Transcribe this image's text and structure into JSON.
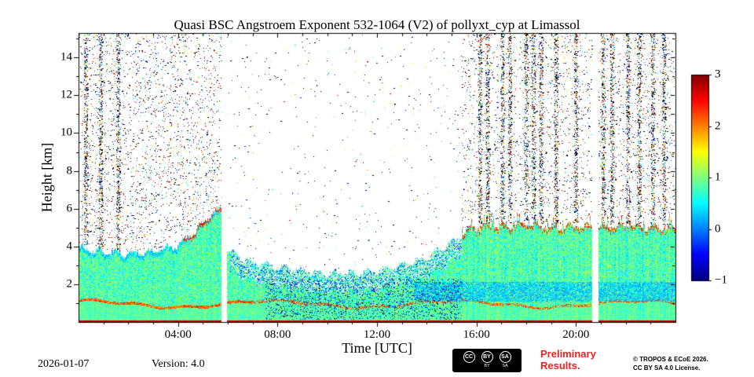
{
  "figure": {
    "title": "Quasi BSC Angstroem Exponent 532-1064 (V2) of pollyxt_cyp at Limassol",
    "xlabel": "Time [UTC]",
    "ylabel": "Height [km]"
  },
  "footer": {
    "date": "2026-01-07",
    "version": "Version: 4.0",
    "preliminary_line1": "Preliminary",
    "preliminary_line2": "Results.",
    "preliminary_color": "#ee2222",
    "copyright_line1": "© TROPOS & ECoE 2026.",
    "copyright_line2": "CC BY SA 4.0 License.",
    "cc_badge": {
      "icons": [
        "CC",
        "BY",
        "SA"
      ],
      "subs": [
        "",
        "BY",
        "SA"
      ]
    }
  },
  "chart_data": {
    "type": "heatmap",
    "title": "Quasi BSC Angstroem Exponent 532-1064 (V2) of pollyxt_cyp at Limassol",
    "xlabel": "Time [UTC]",
    "ylabel": "Height [km]",
    "xlim_hours": [
      0,
      24
    ],
    "ylim": [
      0,
      15.3
    ],
    "x_major_tick_hours": [
      4,
      8,
      12,
      16,
      20
    ],
    "x_major_ticks": [
      "04:00",
      "08:00",
      "12:00",
      "16:00",
      "20:00"
    ],
    "x_minor_step_hours": 1,
    "y_ticks": [
      2,
      4,
      6,
      8,
      10,
      12,
      14
    ],
    "y_minor_step_km": 1,
    "colorbar": {
      "min": -1,
      "max": 3,
      "ticks": [
        3,
        2,
        1,
        0,
        -1
      ],
      "tick_labels": [
        "3",
        "2",
        "1",
        "0",
        "−1"
      ],
      "colormap": "jet"
    },
    "aerosol_layer": {
      "hours": [
        0,
        1,
        2,
        3,
        4,
        4.7,
        5.3,
        5.75,
        6.0,
        7,
        8,
        9,
        10,
        11,
        12,
        13,
        14,
        15,
        15.7,
        16.5,
        17,
        18,
        19,
        20,
        21,
        22,
        23,
        24
      ],
      "top_km": [
        3.9,
        3.7,
        3.6,
        3.7,
        4.1,
        4.8,
        5.7,
        6.0,
        3.7,
        3.2,
        2.9,
        2.7,
        2.6,
        2.6,
        2.7,
        3.0,
        3.4,
        4.2,
        4.9,
        5.1,
        5.0,
        5.2,
        5.0,
        5.1,
        5.0,
        5.1,
        5.0,
        5.0
      ],
      "typical_value": 0.8,
      "value_spread": 0.55,
      "bright_line_km": 0.95,
      "bright_line_value": 2.0,
      "surface_value": 2.5
    },
    "cyan_band": {
      "start_hour": 13.5,
      "km_range": [
        1.1,
        2.1
      ],
      "value": 0.25
    },
    "data_gaps_hours": [
      [
        5.75,
        5.98
      ],
      [
        20.65,
        20.9
      ]
    ],
    "noise_regions": [
      {
        "start": 0,
        "end": 5.75,
        "density": 0.055
      },
      {
        "start": 5.98,
        "end": 15.4,
        "density": 0.006
      },
      {
        "start": 15.4,
        "end": 24,
        "density": 0.045
      }
    ],
    "noise_streak_hours": [
      0.3,
      0.9,
      1.6,
      16.15,
      16.45,
      17.05,
      17.35,
      18.0,
      18.3,
      18.6,
      19.2,
      20.0,
      21.1,
      21.45,
      22.1,
      22.55,
      23.1,
      23.55
    ],
    "noise_streak_width_hours": 0.15,
    "noise_streak_density": 0.35
  }
}
